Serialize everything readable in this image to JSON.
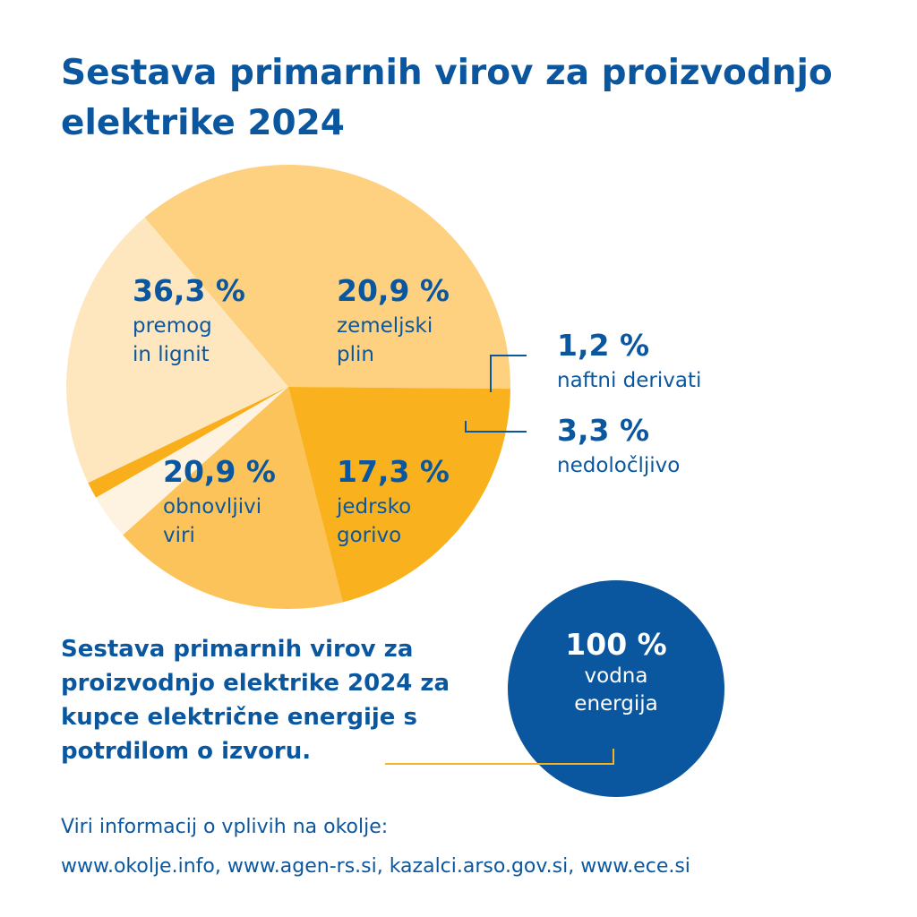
{
  "header": {
    "title": "Sestava primarnih virov za proizvodnjo elektrike 2024"
  },
  "chart_data": {
    "type": "pie",
    "title": "Sestava primarnih virov za proizvodnjo elektrike 2024",
    "slices": [
      {
        "label": "premog in lignit",
        "value": 36.3,
        "value_label": "36,3 %",
        "name_lines": [
          "premog",
          "in lignit"
        ],
        "color": "#fdd17f"
      },
      {
        "label": "zemeljski plin",
        "value": 20.9,
        "value_label": "20,9 %",
        "name_lines": [
          "zemeljski",
          "plin"
        ],
        "color": "#fee7bf"
      },
      {
        "label": "naftni derivati",
        "value": 1.2,
        "value_label": "1,2 %",
        "name_lines": [
          "naftni derivati"
        ],
        "color": "#f9af1b"
      },
      {
        "label": "nedoločljivo",
        "value": 3.3,
        "value_label": "3,3 %",
        "name_lines": [
          "nedoločljivo"
        ],
        "color": "#fef3e0"
      },
      {
        "label": "jedrsko gorivo",
        "value": 17.3,
        "value_label": "17,3 %",
        "name_lines": [
          "jedrsko",
          "gorivo"
        ],
        "color": "#fcc35a"
      },
      {
        "label": "obnovljivi viri",
        "value": 20.9,
        "value_label": "20,9 %",
        "name_lines": [
          "obnovljivi",
          "viri"
        ],
        "color": "#f9b21e"
      }
    ]
  },
  "certified": {
    "text": "Sestava primarnih virov za proizvodnjo elektrike 2024 za kupce električne energije s potrdilom o izvoru.",
    "value": 100,
    "value_label": "100 %",
    "name": "vodna energija",
    "color": "#0b579f",
    "line_color": "#f5b324"
  },
  "footer": {
    "line1": "Viri informacij o vplivih na okolje:",
    "line2": "www.okolje.info, www.agen-rs.si, kazalci.arso.gov.si, www.ece.si"
  },
  "colors": {
    "text": "#0b579f",
    "background": "#ffffff"
  }
}
